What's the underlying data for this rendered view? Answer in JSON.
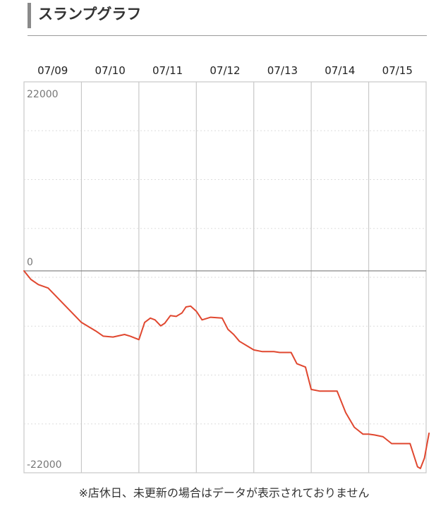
{
  "header": {
    "title": "スランプグラフ"
  },
  "chart_data": {
    "type": "line",
    "title": "スランプグラフ",
    "xlabel": "",
    "ylabel": "",
    "x_tick_labels": [
      "07/09",
      "07/10",
      "07/11",
      "07/12",
      "07/13",
      "07/14",
      "07/15"
    ],
    "y_tick_labels": [
      "22000",
      "0",
      "-22000"
    ],
    "ylim": [
      -23500,
      22000
    ],
    "grid": true,
    "line_color": "#e0472f",
    "series": [
      {
        "x": [
          0.0,
          0.12,
          0.25,
          0.42,
          1.0,
          1.25,
          1.38,
          1.55,
          1.75,
          1.85,
          2.0,
          2.1,
          2.2,
          2.28,
          2.38,
          2.45,
          2.55,
          2.65,
          2.75,
          2.82,
          2.9,
          3.0,
          3.1,
          3.25,
          3.45,
          3.55,
          3.65,
          3.75,
          3.9,
          4.0,
          4.15,
          4.25,
          4.35,
          4.45,
          4.65,
          4.75,
          4.9,
          5.0,
          5.15,
          5.3,
          5.45,
          5.6,
          5.75,
          5.9,
          6.0,
          6.1,
          6.25,
          6.4,
          6.55,
          6.72,
          6.85,
          6.9,
          6.97,
          7.05
        ],
        "y": [
          0,
          -1000,
          -1600,
          -2000,
          -6000,
          -7000,
          -7600,
          -7700,
          -7400,
          -7600,
          -8000,
          -6000,
          -5500,
          -5700,
          -6400,
          -6100,
          -5200,
          -5300,
          -4900,
          -4200,
          -4100,
          -4700,
          -5700,
          -5400,
          -5500,
          -6800,
          -7400,
          -8200,
          -8800,
          -9200,
          -9400,
          -9400,
          -9400,
          -9500,
          -9500,
          -10800,
          -11200,
          -13800,
          -14000,
          -14000,
          -14000,
          -16500,
          -18200,
          -19000,
          -19000,
          -19100,
          -19300,
          -20100,
          -20100,
          -20100,
          -22800,
          -23000,
          -21800,
          -18900
        ]
      }
    ]
  },
  "footer": {
    "note": "※店休日、未更新の場合はデータが表示されておりません"
  }
}
